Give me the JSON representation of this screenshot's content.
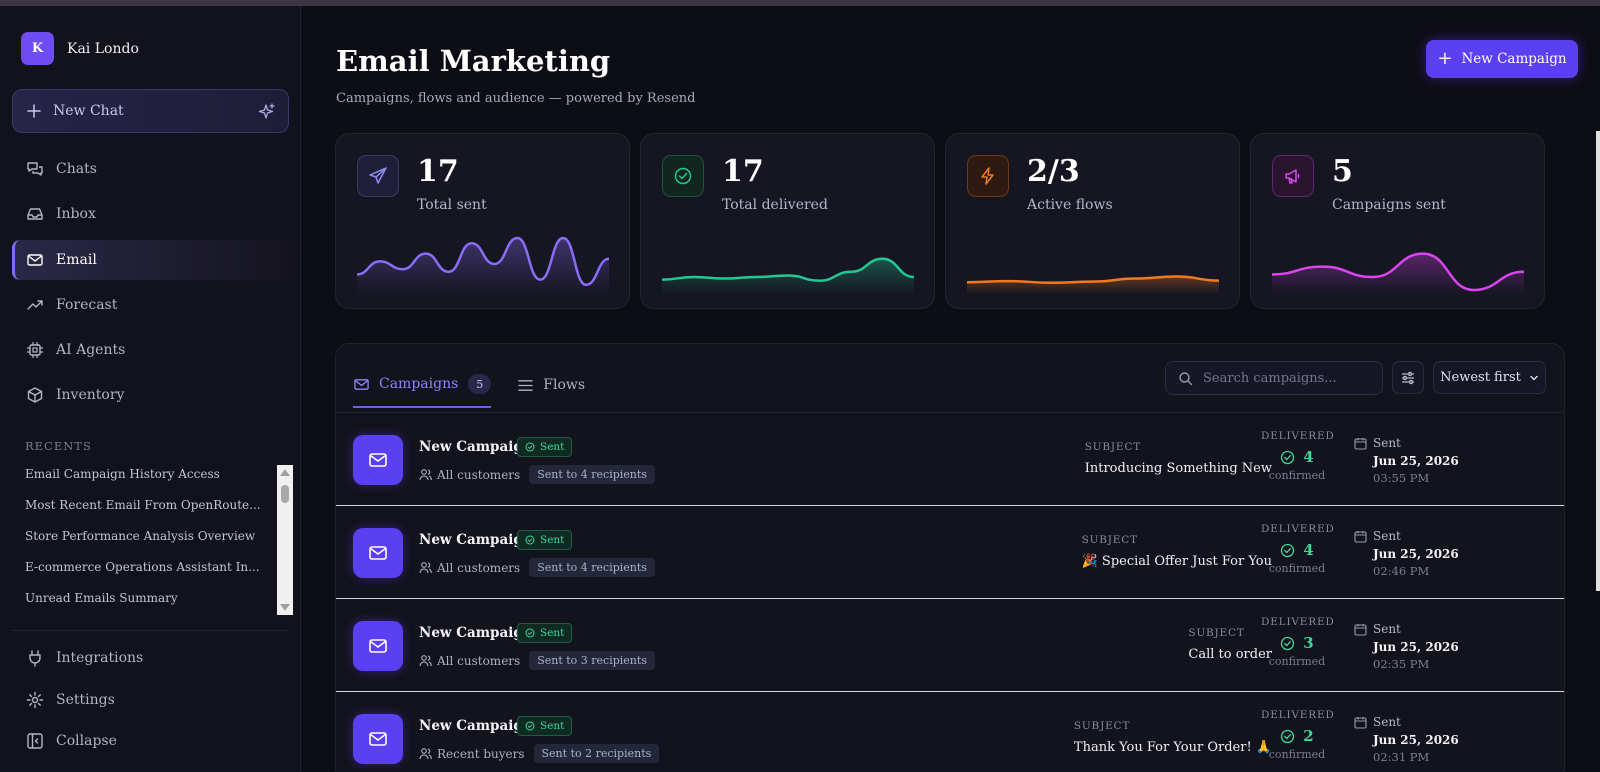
{
  "user": {
    "initial": "K",
    "name": "Kai Londo"
  },
  "new_chat_label": "New Chat",
  "nav": [
    {
      "label": "Chats",
      "icon": "chats-icon"
    },
    {
      "label": "Inbox",
      "icon": "inbox-icon"
    },
    {
      "label": "Email",
      "icon": "mail-icon",
      "active": true
    },
    {
      "label": "Forecast",
      "icon": "trending-icon"
    },
    {
      "label": "AI Agents",
      "icon": "chip-icon"
    },
    {
      "label": "Inventory",
      "icon": "box-icon"
    }
  ],
  "recents_heading": "RECENTS",
  "recents": [
    "Email Campaign History Access",
    "Most Recent Email From OpenRoute...",
    "Store Performance Analysis Overview",
    "E-commerce Operations Assistant In...",
    "Unread Emails Summary"
  ],
  "bottom_nav": [
    {
      "label": "Integrations",
      "icon": "plug-icon"
    },
    {
      "label": "Settings",
      "icon": "gear-icon"
    },
    {
      "label": "Collapse",
      "icon": "collapse-icon"
    }
  ],
  "page": {
    "title": "Email Marketing",
    "subtitle": "Campaigns, flows and audience — powered by Resend",
    "new_campaign_label": "New Campaign"
  },
  "stats": [
    {
      "value": "17",
      "label": "Total sent",
      "icon": "send-icon",
      "color": "#8b6cf7",
      "trend": [
        0.3,
        0.55,
        0.4,
        0.7,
        0.35,
        0.9,
        0.5,
        1.0,
        0.2,
        1.0,
        0.1,
        0.6
      ]
    },
    {
      "value": "17",
      "label": "Total delivered",
      "icon": "check-circle-icon",
      "color": "#22c993",
      "trend": [
        0.2,
        0.25,
        0.22,
        0.25,
        0.28,
        0.18,
        0.35,
        0.6,
        0.25
      ]
    },
    {
      "value": "2/3",
      "label": "Active flows",
      "icon": "bolt-icon",
      "color": "#f07a1e",
      "trend": [
        0.15,
        0.17,
        0.14,
        0.16,
        0.22,
        0.26,
        0.18
      ]
    },
    {
      "value": "5",
      "label": "Campaigns sent",
      "icon": "megaphone-icon",
      "color": "#d946ef",
      "trend": [
        0.3,
        0.45,
        0.25,
        0.7,
        0.0,
        0.35
      ]
    }
  ],
  "tabs": [
    {
      "label": "Campaigns",
      "count": "5",
      "icon": "mail-icon",
      "active": true
    },
    {
      "label": "Flows",
      "icon": "list-icon"
    }
  ],
  "search_placeholder": "Search campaigns...",
  "sort_label": "Newest first",
  "labels": {
    "subject": "SUBJECT",
    "delivered": "DELIVERED",
    "confirmed": "confirmed",
    "sent": "Sent",
    "status": "Sent"
  },
  "campaigns": [
    {
      "name": "New Campaign",
      "audience": "All customers",
      "recipients": "Sent to 4 recipients",
      "subject": "Introducing Something New",
      "delivered": "4",
      "date": "Jun 25, 2026",
      "time": "03:55 PM"
    },
    {
      "name": "New Campaign",
      "audience": "All customers",
      "recipients": "Sent to 4 recipients",
      "subject": "🎉 Special Offer Just For You",
      "delivered": "4",
      "date": "Jun 25, 2026",
      "time": "02:46 PM"
    },
    {
      "name": "New Campaign",
      "audience": "All customers",
      "recipients": "Sent to 3 recipients",
      "subject": "Call to order",
      "delivered": "3",
      "date": "Jun 25, 2026",
      "time": "02:35 PM"
    },
    {
      "name": "New Campaign",
      "audience": "Recent buyers",
      "recipients": "Sent to 2 recipients",
      "subject": "Thank You For Your Order! 🙏",
      "delivered": "2",
      "date": "Jun 25, 2026",
      "time": "02:31 PM"
    }
  ]
}
